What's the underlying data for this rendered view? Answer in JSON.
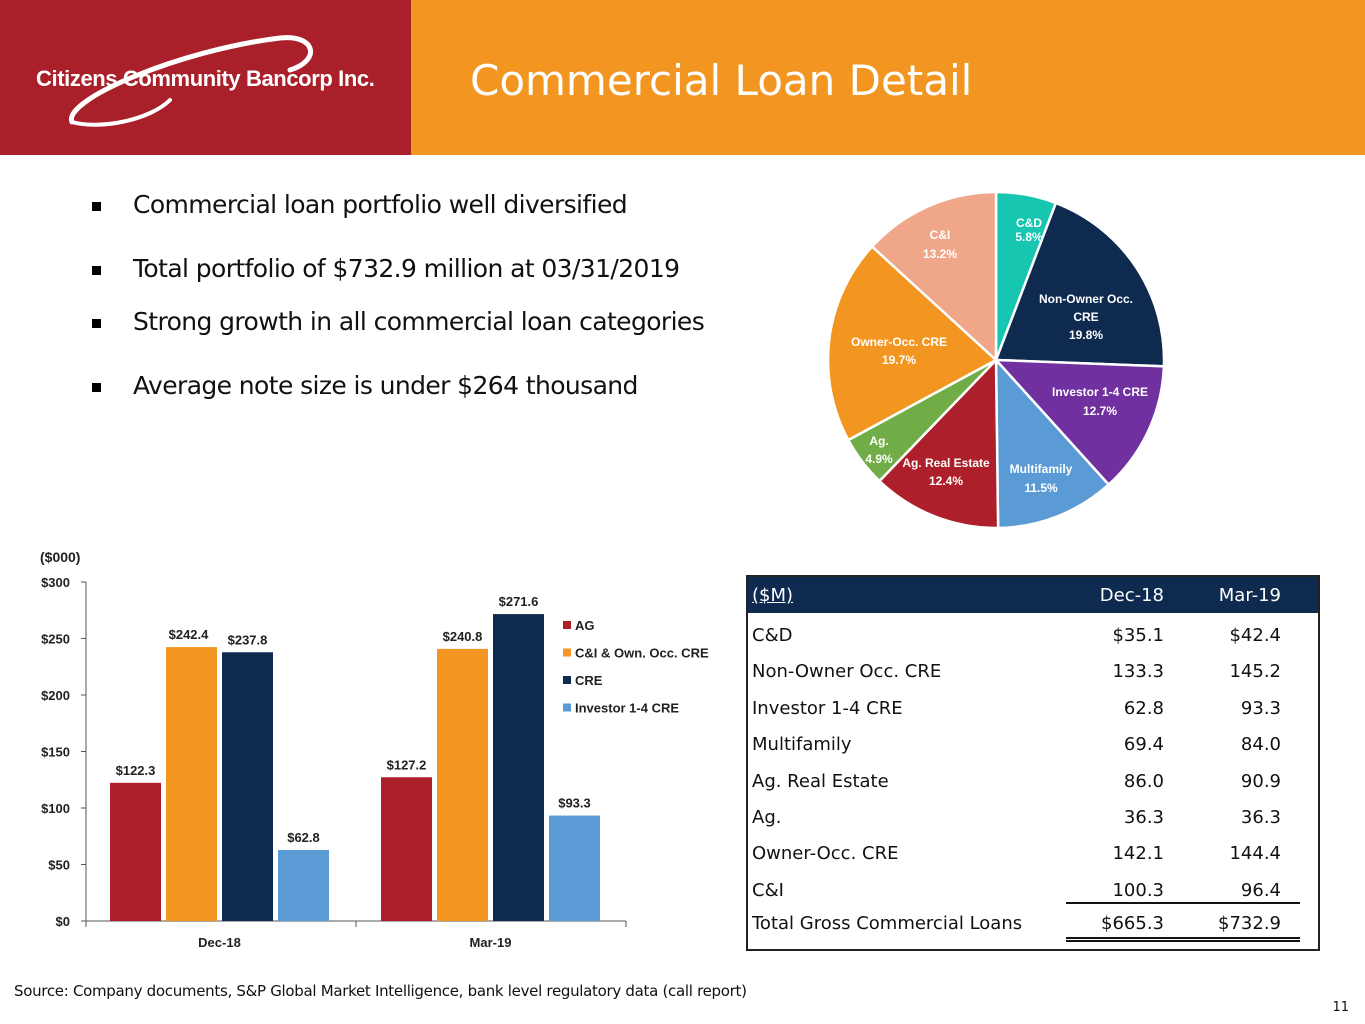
{
  "header": {
    "company": "Citizens Community Bancorp Inc.",
    "title": "Commercial Loan Detail"
  },
  "bullets": [
    "Commercial loan portfolio well diversified",
    "Total portfolio of $732.9 million at 03/31/2019",
    "Strong growth in all commercial loan categories",
    "Average note size is under $264 thousand"
  ],
  "colors": {
    "header_orange": "#f29621",
    "logo_red": "#a9202a",
    "navy": "#0e2a4f",
    "ag_red": "#ad1f2b",
    "orange": "#f29621",
    "blue": "#5b9bd5"
  },
  "chart_data": [
    {
      "type": "pie",
      "title": "",
      "slices": [
        {
          "name": "C&D",
          "label": "5.8%",
          "value": 5.8,
          "color": "#16c6b0"
        },
        {
          "name": "Non-Owner Occ. CRE",
          "label": "19.8%",
          "value": 19.8,
          "color": "#0e2a4f"
        },
        {
          "name": "Investor 1-4 CRE",
          "label": "12.7%",
          "value": 12.7,
          "color": "#7030a0"
        },
        {
          "name": "Multifamily",
          "label": "11.5%",
          "value": 11.5,
          "color": "#5b9bd5"
        },
        {
          "name": "Ag. Real Estate",
          "label": "12.4%",
          "value": 12.4,
          "color": "#ad1f2b"
        },
        {
          "name": "Ag.",
          "label": "4.9%",
          "value": 4.9,
          "color": "#70ad47"
        },
        {
          "name": "Owner-Occ. CRE",
          "label": "19.7%",
          "value": 19.7,
          "color": "#f29621"
        },
        {
          "name": "C&I",
          "label": "13.2%",
          "value": 13.2,
          "color": "#f0a789"
        }
      ]
    },
    {
      "type": "bar",
      "unit_label": "($000)",
      "categories": [
        "Dec-18",
        "Mar-19"
      ],
      "ylim": [
        0,
        300
      ],
      "yticks": [
        0,
        50,
        100,
        150,
        200,
        250,
        300
      ],
      "ytick_labels": [
        "$0",
        "$50",
        "$100",
        "$150",
        "$200",
        "$250",
        "$300"
      ],
      "series": [
        {
          "name": "AG",
          "color": "#ad1f2b",
          "values": [
            122.3,
            127.2
          ],
          "labels": [
            "$122.3",
            "$127.2"
          ]
        },
        {
          "name": "C&I & Own. Occ. CRE",
          "color": "#f29621",
          "values": [
            242.4,
            240.8
          ],
          "labels": [
            "$242.4",
            "$240.8"
          ]
        },
        {
          "name": "CRE",
          "color": "#0e2a4f",
          "values": [
            237.8,
            271.6
          ],
          "labels": [
            "$237.8",
            "$271.6"
          ]
        },
        {
          "name": "Investor 1-4 CRE",
          "color": "#5b9bd5",
          "values": [
            62.8,
            93.3
          ],
          "labels": [
            "$62.8",
            "$93.3"
          ]
        }
      ],
      "legend_position": "right"
    }
  ],
  "table": {
    "header": [
      "($M)",
      "Dec-18",
      "Mar-19"
    ],
    "rows": [
      {
        "label": "C&D",
        "dec": "$35.1",
        "mar": "$42.4"
      },
      {
        "label": "Non-Owner Occ. CRE",
        "dec": "133.3",
        "mar": "145.2"
      },
      {
        "label": "Investor 1-4 CRE",
        "dec": "62.8",
        "mar": "93.3"
      },
      {
        "label": "Multifamily",
        "dec": "69.4",
        "mar": "84.0"
      },
      {
        "label": "Ag. Real Estate",
        "dec": "86.0",
        "mar": "90.9"
      },
      {
        "label": "Ag.",
        "dec": "36.3",
        "mar": "36.3"
      },
      {
        "label": "Owner-Occ. CRE",
        "dec": "142.1",
        "mar": "144.4"
      },
      {
        "label": "C&I",
        "dec": "100.3",
        "mar": "96.4"
      }
    ],
    "total": {
      "label": "Total Gross Commercial Loans",
      "dec": "$665.3",
      "mar": "$732.9"
    }
  },
  "footer": {
    "source": "Source: Company documents, S&P Global Market Intelligence, bank level regulatory data (call report)",
    "page": "11"
  }
}
